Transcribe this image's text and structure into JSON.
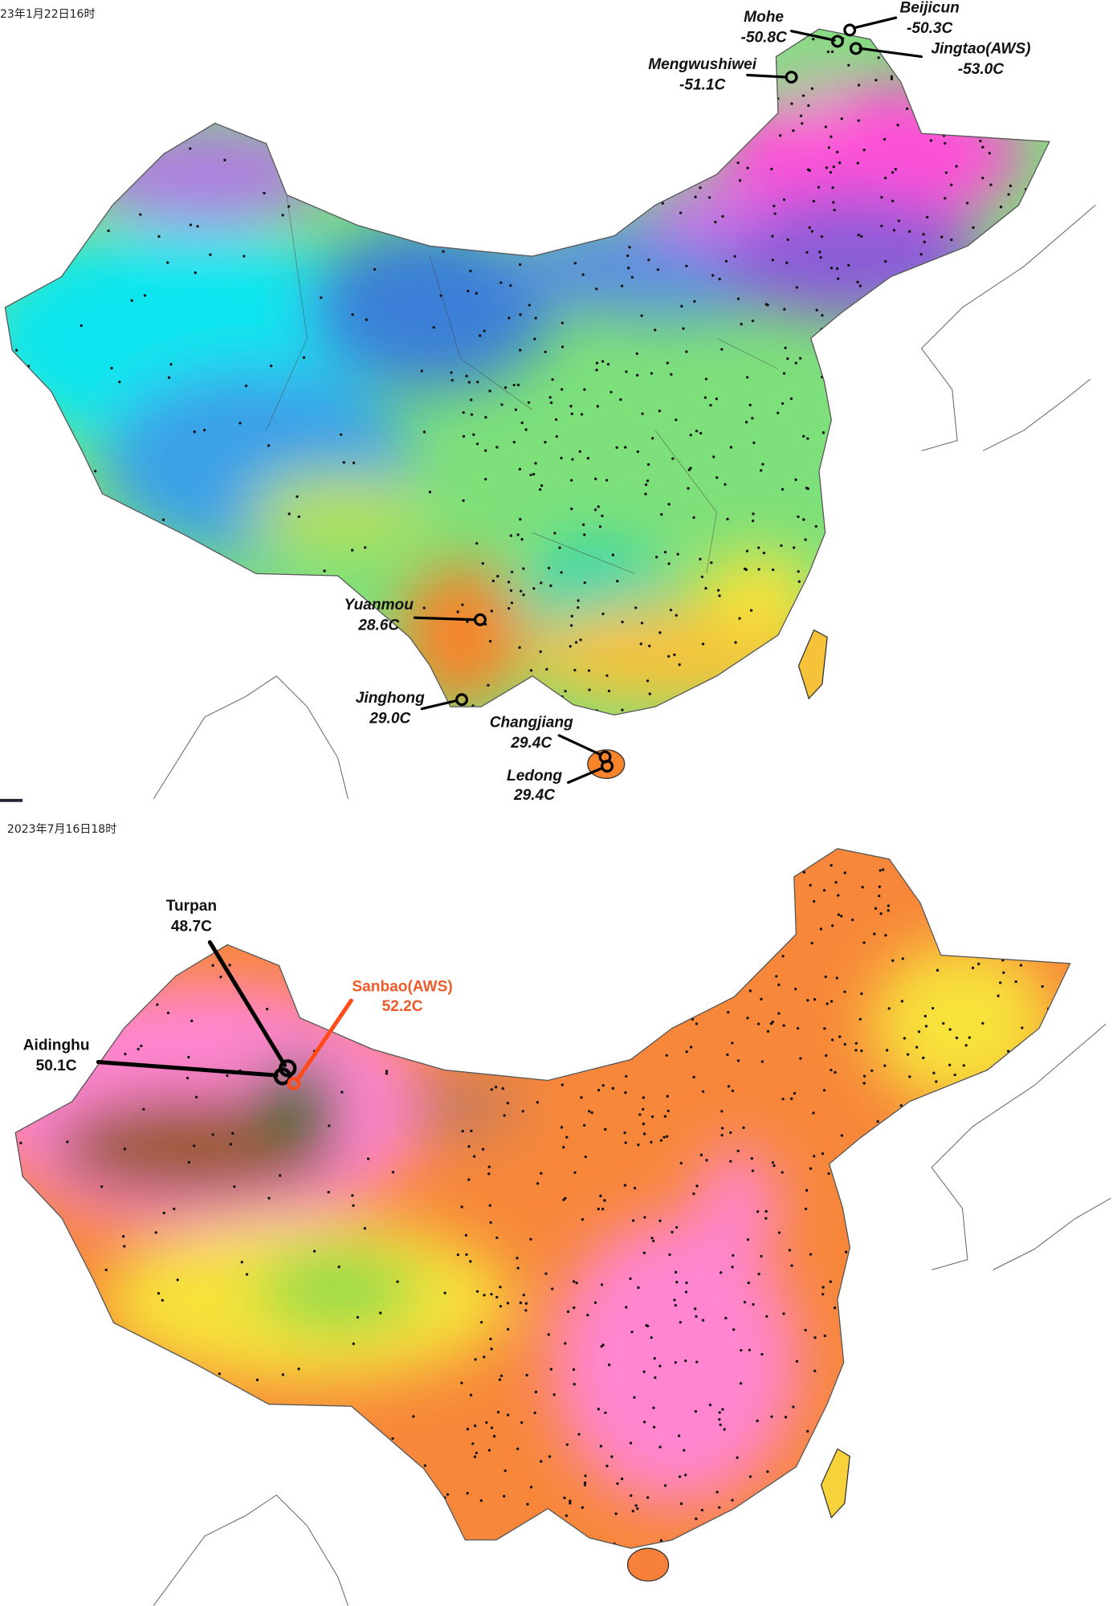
{
  "panels": [
    {
      "timestamp": "23年1月22日16时",
      "colors": {
        "coldest": "#ff4fd8",
        "very_cold": "#9a5fd6",
        "cold": "#3aa0e8",
        "cool": "#10e6f0",
        "mild": "#7de07a",
        "warm": "#f5e23a",
        "hot": "#f7832a"
      },
      "stations": [
        {
          "name": "Mohe",
          "value": "-50.8C"
        },
        {
          "name": "Beijicun",
          "value": "-50.3C"
        },
        {
          "name": "Jingtao(AWS)",
          "value": "-53.0C"
        },
        {
          "name": "Mengwushiwei",
          "value": "-51.1C"
        },
        {
          "name": "Yuanmou",
          "value": "28.6C"
        },
        {
          "name": "Jinghong",
          "value": "29.0C"
        },
        {
          "name": "Changjiang",
          "value": "29.4C"
        },
        {
          "name": "Ledong",
          "value": "29.4C"
        }
      ]
    },
    {
      "timestamp": "2023年7月16日18时",
      "colors": {
        "extreme": "#1f6b2a",
        "very_hot": "#9a5a2a",
        "hot": "#ff85d0",
        "warm": "#f7802f",
        "mild": "#f7e23a",
        "cool": "#8fdc4a",
        "highlight": "#ff4a1a"
      },
      "stations": [
        {
          "name": "Turpan",
          "value": "48.7C"
        },
        {
          "name": "Aidinghu",
          "value": "50.1C"
        },
        {
          "name": "Sanbao(AWS)",
          "value": "52.2C"
        }
      ]
    }
  ]
}
